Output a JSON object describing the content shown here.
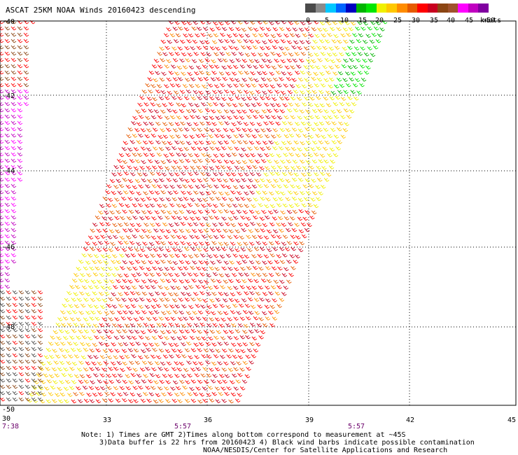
{
  "title": "ASCAT 25KM NOAA Winds 20160423 descending",
  "legend": {
    "labels": [
      "0",
      "5",
      "10",
      "15",
      "20",
      "25",
      "30",
      "35",
      "40",
      "45",
      ">50"
    ],
    "units": "knots",
    "colors": [
      "#4a4a4a",
      "#8a8a8a",
      "#00c8ff",
      "#0064ff",
      "#0000c0",
      "#00b400",
      "#00e600",
      "#f0f000",
      "#ffc800",
      "#ff8c00",
      "#e65a00",
      "#ff0000",
      "#c8001e",
      "#8b4513",
      "#a0522d",
      "#ff00ff",
      "#c000c0",
      "#8000a0"
    ]
  },
  "map": {
    "latitude_labels": [
      "-40",
      "-42",
      "-44",
      "-46",
      "-48",
      "-50"
    ],
    "longitude_labels": [
      "30",
      "33",
      "36",
      "39",
      "42",
      "45"
    ],
    "time_labels": [
      "7:38",
      "5:57",
      "5:57"
    ]
  },
  "notes": {
    "line1": "Note: 1) Times are GMT 2)Times along bottom correspond to measurement at ~45S",
    "line2": "3)Data buffer is 22 hrs from 20160423 4) Black wind barbs indicate possible contamination",
    "line3": "NOAA/NESDIS/Center for Satellite Applications and Research"
  }
}
